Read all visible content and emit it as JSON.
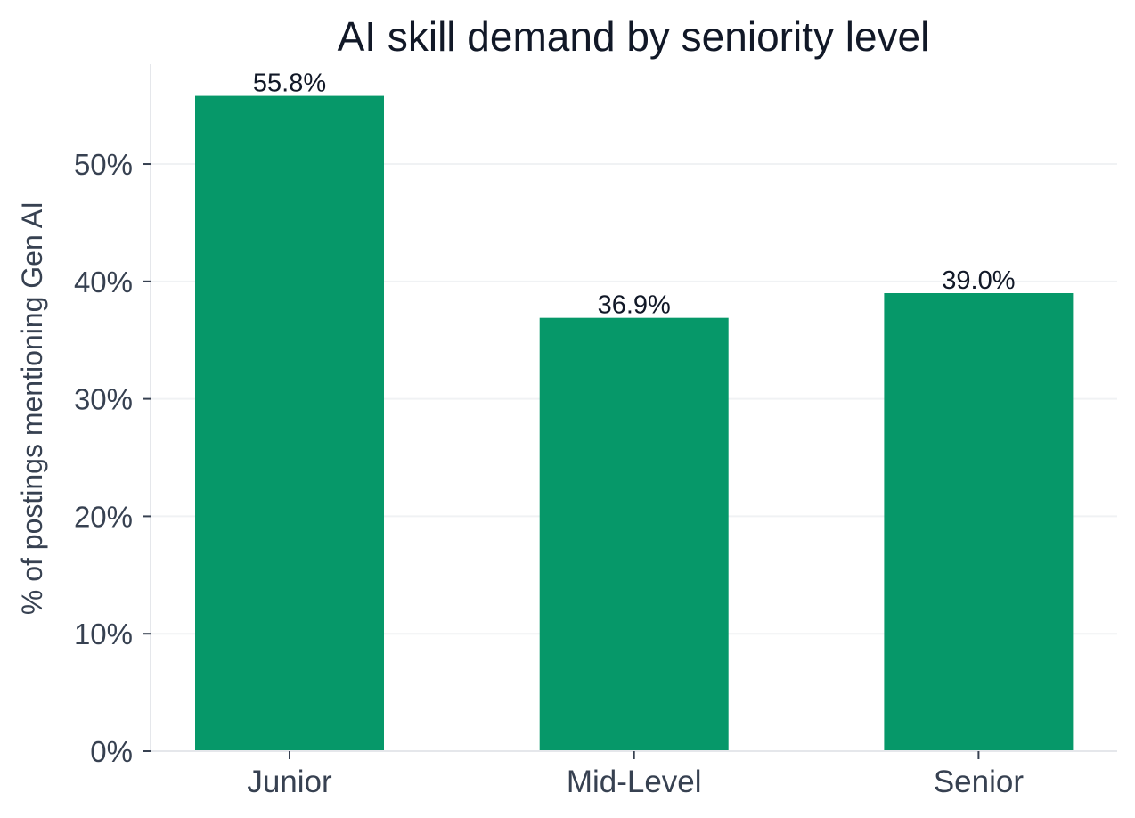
{
  "chart_data": {
    "type": "bar",
    "title": "AI skill demand by seniority level",
    "xlabel": "",
    "ylabel": "% of postings mentioning Gen AI",
    "categories": [
      "Junior",
      "Mid-Level",
      "Senior"
    ],
    "values": [
      55.8,
      36.9,
      39.0
    ],
    "data_labels": [
      "55.8%",
      "36.9%",
      "39.0%"
    ],
    "y_ticks": [
      0,
      10,
      20,
      30,
      40,
      50
    ],
    "y_tick_labels": [
      "0%",
      "10%",
      "20%",
      "30%",
      "40%",
      "50%"
    ],
    "ylim": [
      0,
      58.5
    ],
    "grid": "horizontal",
    "legend": "none",
    "colors": {
      "bar": "#069869",
      "grid": "#f0f2f4",
      "axis": "#e5e7eb"
    }
  }
}
